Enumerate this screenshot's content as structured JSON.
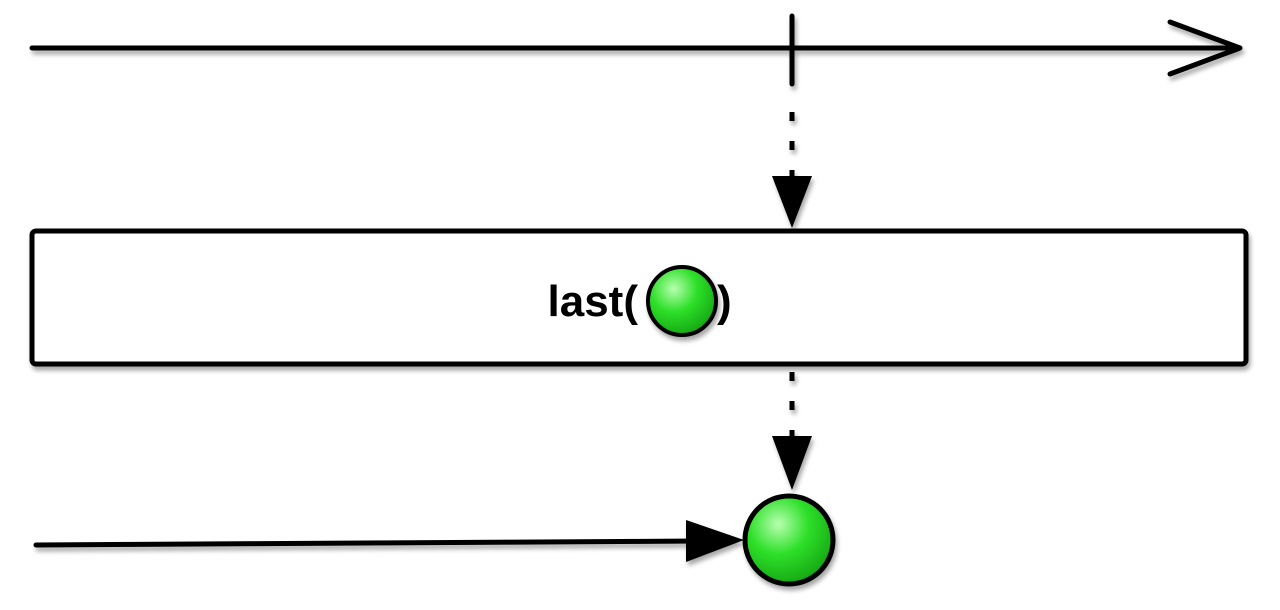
{
  "operator": {
    "label_prefix": "last(",
    "label_suffix": ")"
  },
  "colors": {
    "stroke": "#000000",
    "marble_light": "#b8ffb0",
    "marble_mid": "#2fe02a",
    "marble_dark": "#12a010",
    "box_fill": "#ffffff",
    "background": "#ffffff"
  },
  "input_stream": {
    "emissions": [],
    "completes": true,
    "arrowhead": "open-chevron"
  },
  "output_stream": {
    "emissions": [
      {
        "marble_color": "green"
      }
    ],
    "arrowhead": "filled-triangle"
  }
}
